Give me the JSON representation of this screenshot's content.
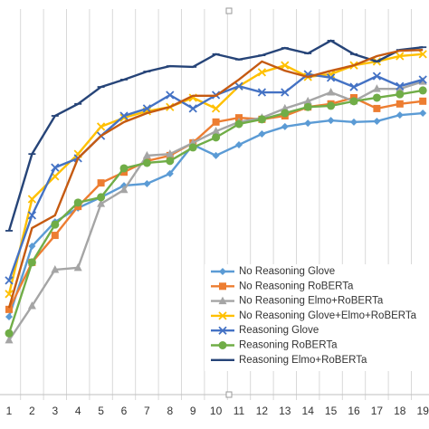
{
  "chart_data": {
    "type": "line",
    "categories": [
      "1",
      "2",
      "3",
      "4",
      "5",
      "6",
      "7",
      "8",
      "9",
      "10",
      "11",
      "12",
      "13",
      "14",
      "15",
      "16",
      "17",
      "18",
      "19"
    ],
    "ylim": [
      0,
      100
    ],
    "series": [
      {
        "name": "No Reasoning Glove",
        "color": "#5b9bd5",
        "marker": "diamond",
        "values": [
          20.2,
          38.5,
          44.8,
          48.4,
          51.2,
          54.2,
          54.7,
          57.3,
          64.8,
          62.0,
          64.8,
          67.6,
          69.5,
          70.4,
          71.1,
          70.7,
          70.9,
          72.5,
          73.0
        ]
      },
      {
        "name": "No Reasoning RoBERTa",
        "color": "#ed7d31",
        "marker": "square",
        "values": [
          22.1,
          34.3,
          41.3,
          48.8,
          54.9,
          57.7,
          60.6,
          62.0,
          65.3,
          70.7,
          71.8,
          71.4,
          72.3,
          74.6,
          75.4,
          77.0,
          74.2,
          75.4,
          76.1
        ]
      },
      {
        "name": "No Reasoning Elmo+RoBERTa",
        "color": "#a5a5a5",
        "marker": "triangle",
        "values": [
          14.1,
          23.0,
          32.4,
          32.9,
          49.5,
          53.1,
          62.0,
          62.4,
          65.3,
          68.3,
          70.7,
          71.8,
          74.2,
          76.1,
          78.4,
          76.1,
          79.3,
          79.3,
          81.2
        ]
      },
      {
        "name": "No Reasoning Glove+Elmo+RoBERTa",
        "color": "#ffc000",
        "marker": "x",
        "values": [
          26.1,
          50.7,
          56.6,
          62.4,
          69.5,
          71.8,
          73.5,
          74.6,
          77.0,
          74.2,
          80.0,
          83.6,
          85.4,
          82.4,
          83.1,
          85.4,
          86.4,
          87.8,
          88.3
        ]
      },
      {
        "name": "Reasoning Glove",
        "color": "#4472c4",
        "marker": "x",
        "values": [
          29.6,
          46.5,
          58.9,
          61.3,
          67.1,
          72.3,
          74.2,
          77.7,
          74.2,
          77.7,
          80.0,
          78.4,
          78.4,
          83.1,
          82.2,
          79.8,
          82.6,
          80.0,
          81.7
        ]
      },
      {
        "name": "Reasoning RoBERTa",
        "color": "#70ad47",
        "marker": "circle",
        "values": [
          15.9,
          34.3,
          44.1,
          49.8,
          51.2,
          58.7,
          60.1,
          60.6,
          64.1,
          66.7,
          70.2,
          71.4,
          73.0,
          74.6,
          74.9,
          76.1,
          77.0,
          77.9,
          78.9
        ]
      },
      {
        "name": "Reasoning Elmo+RoBERTa",
        "color": "#264478",
        "marker": "dash",
        "values": [
          42.5,
          62.4,
          72.3,
          75.4,
          79.8,
          81.7,
          83.8,
          85.2,
          85.0,
          88.3,
          86.9,
          88.0,
          89.9,
          88.5,
          91.8,
          88.3,
          86.4,
          89.4,
          90.1
        ]
      },
      {
        "color": "#c55a11",
        "marker": "none",
        "values": [
          22.5,
          43.2,
          46.5,
          61.3,
          67.1,
          70.7,
          73.0,
          74.6,
          77.5,
          77.5,
          81.7,
          86.4,
          84.0,
          82.4,
          84.0,
          85.4,
          87.8,
          89.2,
          89.4
        ]
      }
    ]
  }
}
